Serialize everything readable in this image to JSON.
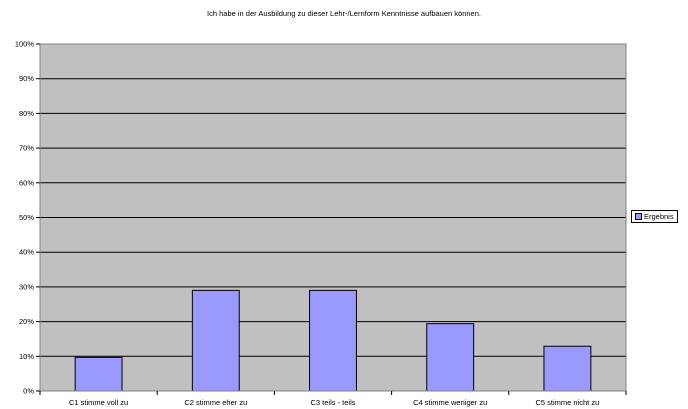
{
  "chart_data": {
    "type": "bar",
    "title": "Ich habe in der Ausbildung zu dieser Lehr-/Lernform Kenntnisse aufbauen können.",
    "xlabel": "",
    "ylabel": "",
    "categories": [
      "C1 stimme voll zu",
      "C2 stimme eher zu",
      "C3 teils - teils",
      "C4 stimme weniger zu",
      "C5 stimme nicht zu"
    ],
    "series": [
      {
        "name": "Ergebnis",
        "values": [
          9.7,
          29.0,
          29.0,
          19.4,
          12.9
        ]
      }
    ],
    "ylim": [
      0,
      100
    ],
    "yticks": [
      "0%",
      "10%",
      "20%",
      "30%",
      "40%",
      "50%",
      "60%",
      "70%",
      "80%",
      "90%",
      "100%"
    ],
    "grid": true,
    "legend_position": "right",
    "colors": {
      "plot_background": "#c0c0c0",
      "bar_fill": "#9999ff",
      "bar_stroke": "#000000",
      "gridline": "#000000"
    }
  }
}
